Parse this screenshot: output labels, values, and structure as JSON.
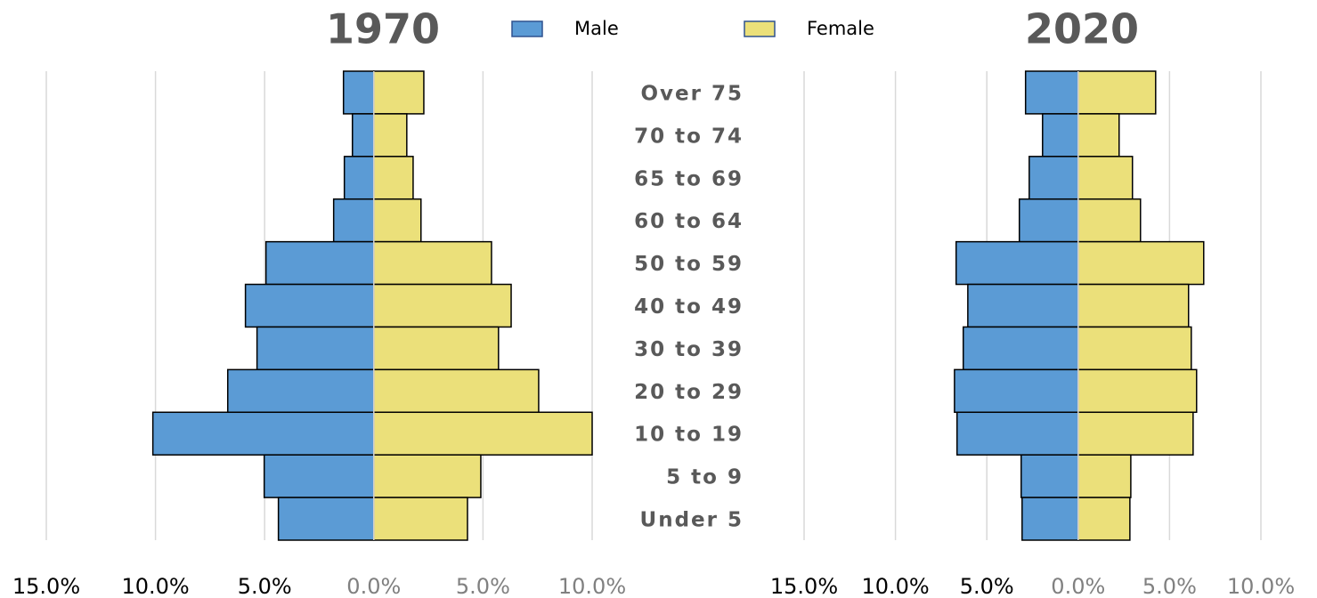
{
  "chart_data": [
    {
      "type": "bar",
      "orientation": "horizontal",
      "title": "1970",
      "categories": [
        "Over 75",
        "70 to 74",
        "65 to 69",
        "60 to 64",
        "50 to 59",
        "40 to 49",
        "30 to 39",
        "20 to 29",
        "10 to 19",
        "5 to 9",
        "Under 5"
      ],
      "series": [
        {
          "name": "Male",
          "color": "#5b9bd5",
          "values": [
            -1.39,
            -0.98,
            -1.35,
            -1.84,
            -4.94,
            -5.88,
            -5.35,
            -6.69,
            -10.12,
            -5.02,
            -4.37
          ]
        },
        {
          "name": "Female",
          "color": "#ebe07a",
          "values": [
            2.29,
            1.51,
            1.8,
            2.16,
            5.39,
            6.29,
            5.71,
            7.55,
            10.0,
            4.9,
            4.29
          ]
        }
      ],
      "xlim": [
        -15,
        10
      ],
      "xticks": [
        {
          "value": -15,
          "label": "15.0%"
        },
        {
          "value": -10,
          "label": "10.0%"
        },
        {
          "value": -5,
          "label": "5.0%"
        },
        {
          "value": 0,
          "label": "0.0%"
        },
        {
          "value": 5,
          "label": "5.0%"
        },
        {
          "value": 10,
          "label": "10.0%"
        }
      ],
      "grid": true
    },
    {
      "type": "bar",
      "orientation": "horizontal",
      "title": "2020",
      "series": [
        {
          "color": "#5b9bd5",
          "values": [
            -2.88,
            -1.95,
            -2.68,
            -3.22,
            -6.68,
            -6.04,
            -6.29,
            -6.77,
            -6.63,
            -3.12,
            -3.07
          ]
        },
        {
          "color": "#ebe07a",
          "values": [
            4.24,
            2.24,
            2.97,
            3.41,
            6.87,
            6.04,
            6.19,
            6.48,
            6.29,
            2.88,
            2.83
          ]
        }
      ],
      "xlim": [
        -15,
        10
      ],
      "xticks": [
        {
          "value": -15,
          "label": "15.0%"
        },
        {
          "value": -10,
          "label": "10.0%"
        },
        {
          "value": -5,
          "label": "5.0%"
        },
        {
          "value": 0,
          "label": "0.0%"
        },
        {
          "value": 5,
          "label": "5.0%"
        },
        {
          "value": 10,
          "label": "10.0%"
        }
      ],
      "grid": true
    }
  ]
}
